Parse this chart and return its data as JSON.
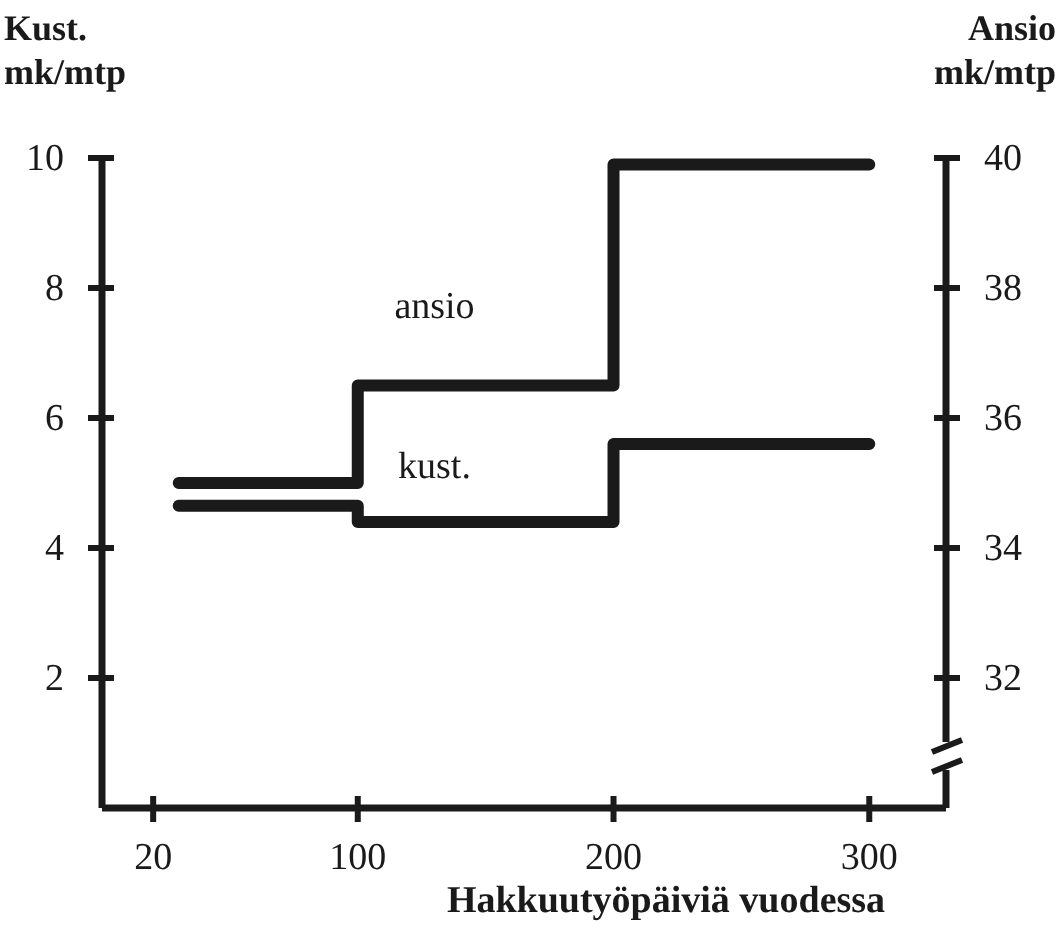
{
  "chart_data": {
    "type": "step",
    "xlabel": "Hakkuutyöpäiviä vuodessa",
    "ylabel": "Kust.\nmk/mtp",
    "y2label": "Ansio\nmk/mtp",
    "x": [
      30,
      100,
      200,
      300
    ],
    "series": [
      {
        "name": "ansio",
        "color": "#1a1a1a",
        "axis": "y2",
        "values": [
          35.0,
          36.5,
          39.9,
          39.9
        ]
      },
      {
        "name": "kust.",
        "color": "#1a1a1a",
        "values": [
          4.65,
          4.4,
          5.6,
          5.6
        ]
      }
    ],
    "xlim": [
      0,
      330
    ],
    "xticks": [
      20,
      100,
      200,
      300
    ],
    "ylim": [
      0,
      10
    ],
    "yticks": [
      2,
      4,
      6,
      8,
      10
    ],
    "y2lim": [
      30,
      40
    ],
    "y2ticks": [
      32,
      34,
      36,
      38,
      40
    ],
    "grid": false
  }
}
